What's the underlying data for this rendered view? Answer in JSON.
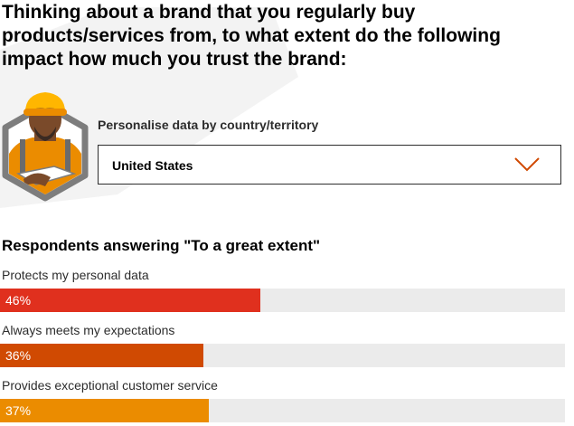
{
  "header": {
    "title": "Thinking about a brand that you regularly buy products/services from, to what extent do the following impact how much you trust the brand:"
  },
  "personalise": {
    "label": "Personalise data by country/territory",
    "selected": "United States",
    "chevron_icon": "chevron-down-icon"
  },
  "colors": {
    "accent": "#e0301e",
    "track": "#ebebeb",
    "chevron": "#d04a02"
  },
  "chart_data": {
    "type": "bar",
    "orientation": "horizontal",
    "title": "Respondents answering \"To a great extent\"",
    "categories": [
      "Protects my personal data",
      "Always meets my expectations",
      "Provides exceptional customer service"
    ],
    "values": [
      46,
      36,
      37
    ],
    "value_labels": [
      "46%",
      "36%",
      "37%"
    ],
    "colors": [
      "#e0301e",
      "#d04a02",
      "#eb8c00"
    ],
    "xlim": [
      0,
      100
    ],
    "grid": false
  }
}
